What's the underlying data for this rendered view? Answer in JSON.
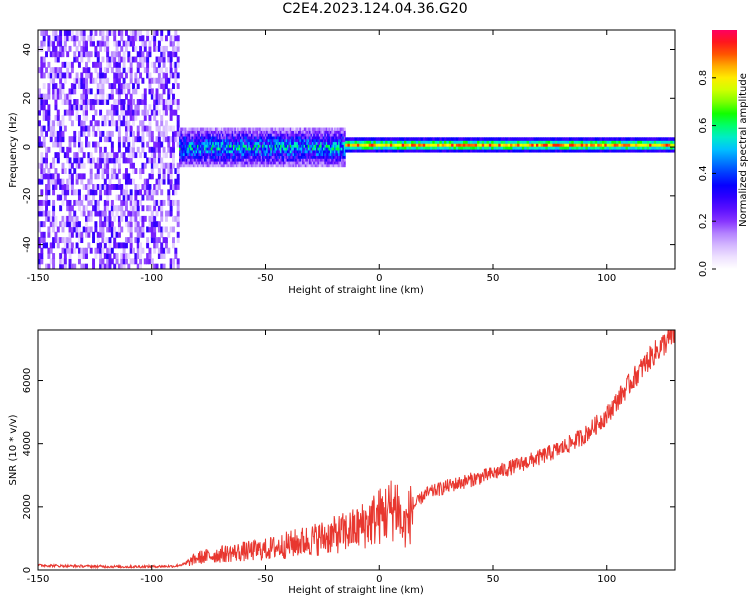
{
  "page": {
    "title": "C2E4.2023.124.04.36.G20"
  },
  "colors": {
    "spectrum_palette": [
      "#ffffff",
      "#e6d4ff",
      "#b98cff",
      "#7a1fff",
      "#3b00ff",
      "#0000ff",
      "#0060ff",
      "#00c0ff",
      "#00ffb0",
      "#00ff00",
      "#a0ff00",
      "#ffff00",
      "#ffa000",
      "#ff2000",
      "#ff0060"
    ],
    "snr_line": "#e8372f"
  },
  "chart_data": [
    {
      "type": "heatmap",
      "title": "",
      "xlabel": "Height of straight line (km)",
      "ylabel": "Frequency (Hz)",
      "xlim": [
        -150,
        130
      ],
      "ylim": [
        -50,
        48
      ],
      "xticks": [
        -150,
        -100,
        -50,
        0,
        50,
        100
      ],
      "yticks": [
        -40,
        -20,
        0,
        20,
        40
      ],
      "colorbar": {
        "label": "Normalized spectral amplitude",
        "range": [
          0,
          1
        ],
        "ticks": [
          "0.0",
          "0.2",
          "0.4",
          "0.6",
          "0.8"
        ],
        "tick_values": [
          0.0,
          0.2,
          0.4,
          0.6,
          0.8
        ]
      },
      "regions": [
        {
          "x_range": [
            -150,
            -88
          ],
          "freq_range": [
            -50,
            48
          ],
          "amplitude": 0.18
        },
        {
          "x_range": [
            -88,
            -15
          ],
          "freq_range": [
            -8,
            8
          ],
          "amplitude": 0.35
        },
        {
          "x_range": [
            -15,
            130
          ],
          "freq_range": [
            -2,
            4
          ],
          "amplitude": 0.75
        }
      ]
    },
    {
      "type": "line",
      "title": "",
      "xlabel": "Height of straight line (km)",
      "ylabel": "SNR (10 * v/v)",
      "xlim": [
        -150,
        130
      ],
      "ylim": [
        0,
        7600
      ],
      "xticks": [
        -150,
        -100,
        -50,
        0,
        50,
        100
      ],
      "yticks": [
        0,
        2000,
        4000,
        6000
      ],
      "grid": false,
      "series": [
        {
          "x": [
            -150,
            -140,
            -130,
            -120,
            -110,
            -100,
            -90,
            -85,
            -80,
            -70,
            -60,
            -50,
            -40,
            -30,
            -20,
            -10,
            0,
            5,
            8,
            10,
            12,
            15,
            20,
            30,
            40,
            50,
            60,
            70,
            80,
            90,
            100,
            110,
            120,
            130
          ],
          "values": [
            150,
            130,
            120,
            110,
            100,
            110,
            120,
            200,
            380,
            500,
            580,
            650,
            800,
            950,
            1100,
            1300,
            1700,
            1900,
            2100,
            1300,
            1500,
            2000,
            2400,
            2650,
            2850,
            3050,
            3300,
            3550,
            3850,
            4250,
            4900,
            5900,
            6800,
            7500
          ]
        }
      ]
    }
  ]
}
